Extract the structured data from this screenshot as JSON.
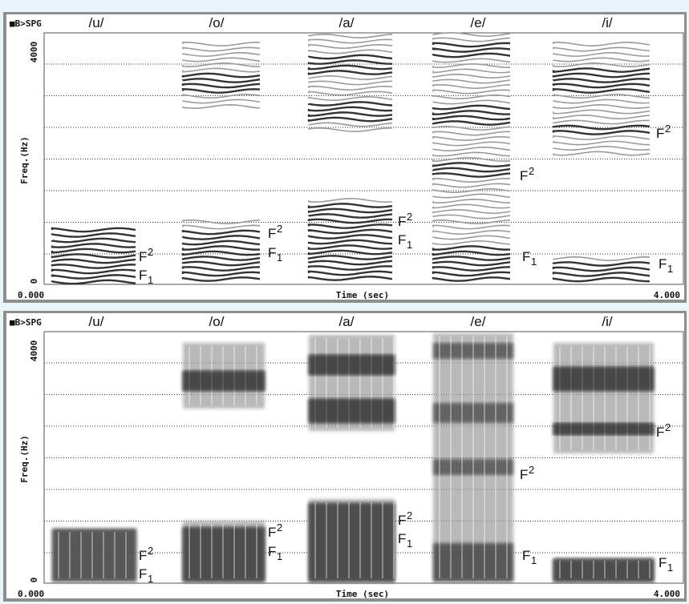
{
  "panels": [
    {
      "header": "■B>SPG",
      "vowels": [
        "/u/",
        "/o/",
        "/a/",
        "/e/",
        "/i/"
      ],
      "y_top": "4000",
      "y_bottom": "0",
      "y_label": "Freq.(Hz)",
      "x_start": "0.000",
      "x_label": "Time (sec)",
      "x_end": "4.000",
      "formants": [
        {
          "letter": "F",
          "index": "2"
        },
        {
          "letter": "F",
          "index": "1"
        },
        {
          "letter": "F",
          "index": "2"
        },
        {
          "letter": "F",
          "index": "1"
        },
        {
          "letter": "F",
          "index": "2"
        },
        {
          "letter": "F",
          "index": "1"
        },
        {
          "letter": "F",
          "index": "2"
        },
        {
          "letter": "F",
          "index": "1"
        },
        {
          "letter": "F",
          "index": "2"
        },
        {
          "letter": "F",
          "index": "1"
        }
      ]
    },
    {
      "header": "■B>SPG",
      "vowels": [
        "/u/",
        "/o/",
        "/a/",
        "/e/",
        "/i/"
      ],
      "y_top": "4000",
      "y_bottom": "0",
      "y_label": "Freq.(Hz)",
      "x_start": "0.000",
      "x_label": "Time (sec)",
      "x_end": "4.000",
      "formants": [
        {
          "letter": "F",
          "index": "2"
        },
        {
          "letter": "F",
          "index": "1"
        },
        {
          "letter": "F",
          "index": "2"
        },
        {
          "letter": "F",
          "index": "1"
        },
        {
          "letter": "F",
          "index": "2"
        },
        {
          "letter": "F",
          "index": "1"
        },
        {
          "letter": "F",
          "index": "2"
        },
        {
          "letter": "F",
          "index": "1"
        },
        {
          "letter": "F",
          "index": "2"
        },
        {
          "letter": "F",
          "index": "1"
        }
      ]
    }
  ]
}
